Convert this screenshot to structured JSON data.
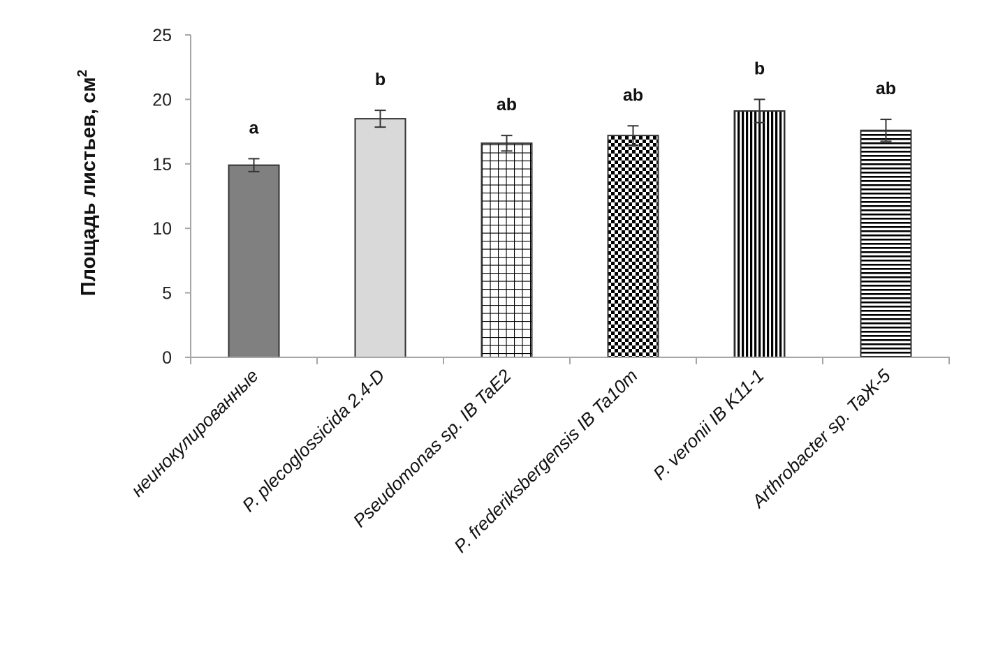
{
  "chart_data": {
    "type": "bar",
    "title": "",
    "xlabel": "",
    "ylabel": "Площадь листьев, см",
    "ylabel_superscript": "2",
    "ylim": [
      0,
      25
    ],
    "yticks": [
      0,
      5,
      10,
      15,
      20,
      25
    ],
    "grid": false,
    "legend": "none",
    "categories": [
      "неинокулированные",
      "P. plecoglossicida 2.4-D",
      "Pseudomonas sp. IB TaE2",
      "P. frederiksbergensis IB Ta10m",
      "P. veronii IB K11-1",
      "Arthrobacter sp. TaЖ-5"
    ],
    "values": [
      14.9,
      18.5,
      16.6,
      17.2,
      19.1,
      17.6
    ],
    "errors": [
      0.5,
      0.65,
      0.6,
      0.75,
      0.9,
      0.85
    ],
    "significance_labels": [
      "a",
      "b",
      "ab",
      "ab",
      "b",
      "ab"
    ],
    "fills": [
      {
        "pattern": "solid",
        "color": "#808080"
      },
      {
        "pattern": "solid",
        "color": "#d9d9d9"
      },
      {
        "pattern": "grid",
        "color": "#000000"
      },
      {
        "pattern": "checker",
        "color": "#000000"
      },
      {
        "pattern": "vertical-stripes",
        "color": "#000000"
      },
      {
        "pattern": "horizontal-stripes",
        "color": "#000000"
      }
    ]
  }
}
